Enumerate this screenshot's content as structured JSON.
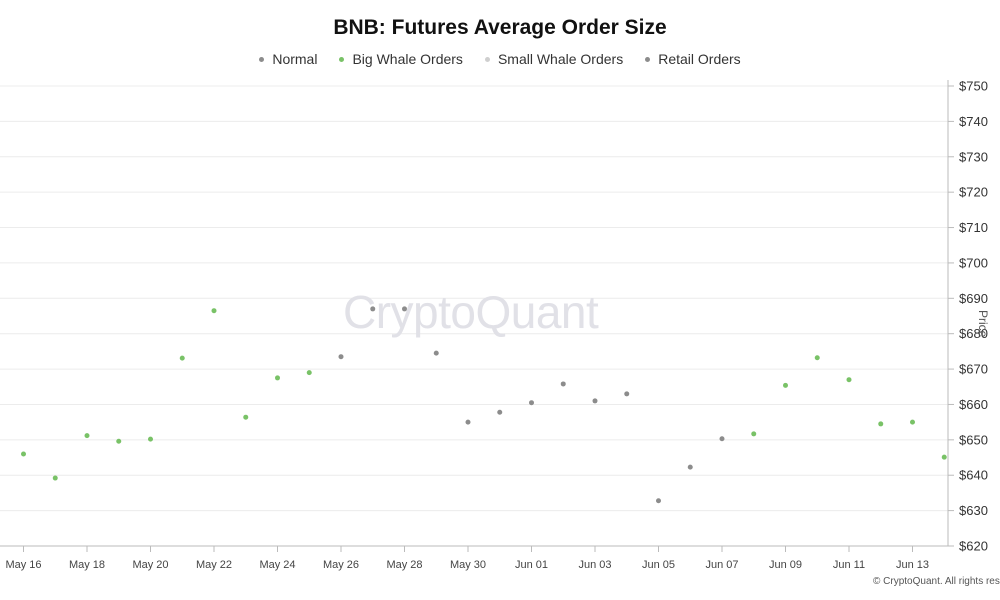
{
  "watermark": "CryptoQuant",
  "copyright": "© CryptoQuant. All rights reserved",
  "colors": {
    "normal": "#8c8c8c",
    "big_whale": "#79c267",
    "small_whale": "#cfcfcf",
    "retail": "#8c8c8c",
    "grid": "#ececec",
    "axis": "#bbbbbb"
  },
  "chart_data": {
    "type": "scatter",
    "title": "BNB: Futures Average Order Size",
    "ylabel": "Price",
    "ylim": [
      620,
      750
    ],
    "y_ticks": [
      "$620",
      "$630",
      "$640",
      "$650",
      "$660",
      "$670",
      "$680",
      "$690",
      "$700",
      "$710",
      "$720",
      "$730",
      "$740",
      "$750"
    ],
    "y_tick_values": [
      620,
      630,
      640,
      650,
      660,
      670,
      680,
      690,
      700,
      710,
      720,
      730,
      740,
      750
    ],
    "x_tick_labels": [
      "May 16",
      "May 18",
      "May 20",
      "May 22",
      "May 24",
      "May 26",
      "May 28",
      "May 30",
      "Jun 01",
      "Jun 03",
      "Jun 05",
      "Jun 07",
      "Jun 09",
      "Jun 11",
      "Jun 13"
    ],
    "x": [
      "May 16",
      "May 17",
      "May 18",
      "May 19",
      "May 20",
      "May 21",
      "May 22",
      "May 23",
      "May 24",
      "May 25",
      "May 26",
      "May 27",
      "May 28",
      "May 29",
      "May 30",
      "May 31",
      "Jun 01",
      "Jun 02",
      "Jun 03",
      "Jun 04",
      "Jun 05",
      "Jun 06",
      "Jun 07",
      "Jun 08",
      "Jun 09",
      "Jun 10",
      "Jun 11",
      "Jun 12",
      "Jun 13",
      "Jun 14"
    ],
    "series": [
      {
        "name": "Normal",
        "color": "#8c8c8c",
        "values": [
          null,
          null,
          null,
          null,
          null,
          null,
          null,
          null,
          null,
          null,
          673.5,
          687,
          687,
          674.5,
          655,
          657.8,
          660.5,
          665.8,
          661,
          663,
          632.8,
          642.3,
          650.3,
          null,
          null,
          null,
          null,
          null,
          null,
          null
        ]
      },
      {
        "name": "Big Whale Orders",
        "color": "#79c267",
        "values": [
          646,
          639.2,
          651.2,
          649.6,
          650.2,
          673.1,
          686.5,
          656.4,
          667.5,
          669,
          null,
          null,
          null,
          null,
          null,
          null,
          null,
          null,
          null,
          null,
          null,
          null,
          null,
          651.7,
          665.4,
          673.2,
          667,
          654.5,
          655,
          645.1
        ]
      },
      {
        "name": "Small Whale Orders",
        "color": "#cfcfcf",
        "values": []
      },
      {
        "name": "Retail Orders",
        "color": "#8c8c8c",
        "values": []
      }
    ],
    "grid": true,
    "legend_position": "top-center"
  }
}
